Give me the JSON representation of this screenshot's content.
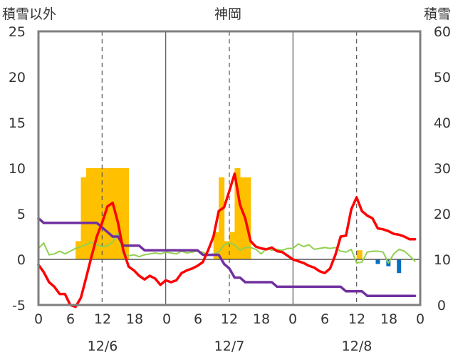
{
  "chart_data": {
    "type": "line",
    "title": "神岡",
    "left_axis": {
      "label": "積雪以外",
      "ylim": [
        -5,
        25
      ],
      "ticks": [
        "25",
        "20",
        "15",
        "10",
        "5",
        "0",
        "-5"
      ]
    },
    "right_axis": {
      "label": "積雪",
      "ylim": [
        0,
        60
      ],
      "ticks": [
        "60",
        "50",
        "40",
        "30",
        "20",
        "10",
        "0"
      ]
    },
    "x_axis": {
      "xlim": [
        0,
        72
      ],
      "hour_ticks": [
        "0",
        "6",
        "12",
        "18",
        "0",
        "6",
        "12",
        "18",
        "0",
        "6",
        "12",
        "18",
        "0"
      ],
      "dates": [
        "12/6",
        "12/7",
        "12/8"
      ]
    },
    "colors": {
      "temperature": "#ff0000",
      "snow_depth": "#7030a0",
      "green": "#92d050",
      "precip": "#ffc000",
      "change": "#0070c0"
    },
    "series": [
      {
        "key": "temperature",
        "axis": "left",
        "x": [
          0,
          1,
          2,
          3,
          4,
          5,
          6,
          7,
          8,
          9,
          10,
          11,
          12,
          13,
          14,
          15,
          16,
          17,
          18,
          19,
          20,
          21,
          22,
          23,
          24,
          25,
          26,
          27,
          28,
          29,
          30,
          31,
          32,
          33,
          34,
          35,
          36,
          37,
          38,
          39,
          40,
          41,
          42,
          43,
          44,
          45,
          46,
          47,
          48,
          49,
          50,
          51,
          52,
          53,
          54,
          55,
          56,
          57,
          58,
          59,
          60,
          61,
          62,
          63,
          64,
          65,
          66,
          67,
          68,
          69,
          70,
          71
        ],
        "y": [
          -0.6,
          -1.4,
          -2.5,
          -3,
          -3.8,
          -3.8,
          -5,
          -5.2,
          -4.2,
          -2,
          0.3,
          2.5,
          4,
          5.8,
          6.2,
          4,
          1,
          -0.8,
          -1.2,
          -1.8,
          -2.2,
          -1.8,
          -2.1,
          -2.8,
          -2.3,
          -2.5,
          -2.3,
          -1.5,
          -1.2,
          -1,
          -0.7,
          -0.3,
          1,
          2.5,
          5.3,
          5.7,
          7.5,
          9.4,
          6,
          4.5,
          2,
          1.4,
          1.2,
          1.1,
          1.3,
          0.9,
          0.8,
          0.4,
          0,
          -0.2,
          -0.4,
          -0.7,
          -0.9,
          -1.3,
          -1.5,
          -1,
          0.5,
          2.5,
          2.6,
          5.5,
          6.8,
          5.3,
          4.8,
          4.5,
          3.4,
          3.3,
          3.1,
          2.8,
          2.7,
          2.5,
          2.2,
          2.2
        ]
      },
      {
        "key": "snow_depth",
        "axis": "right",
        "x": [
          0,
          1,
          2,
          3,
          4,
          5,
          6,
          7,
          8,
          9,
          10,
          11,
          12,
          13,
          14,
          15,
          16,
          17,
          18,
          19,
          20,
          21,
          22,
          23,
          24,
          25,
          26,
          27,
          28,
          29,
          30,
          31,
          32,
          33,
          34,
          35,
          36,
          37,
          38,
          39,
          40,
          41,
          42,
          43,
          44,
          45,
          46,
          47,
          48,
          49,
          50,
          51,
          52,
          53,
          54,
          55,
          56,
          57,
          58,
          59,
          60,
          61,
          62,
          63,
          64,
          65,
          66,
          67,
          68,
          69,
          70,
          71
        ],
        "y": [
          19,
          18,
          18,
          18,
          18,
          18,
          18,
          18,
          18,
          18,
          18,
          18,
          17,
          16,
          15,
          15,
          13,
          13,
          13,
          13,
          12,
          12,
          12,
          12,
          12,
          12,
          12,
          12,
          12,
          12,
          12,
          11,
          11,
          11,
          11,
          9,
          8,
          6,
          6,
          5,
          5,
          5,
          5,
          5,
          5,
          4,
          4,
          4,
          4,
          4,
          4,
          4,
          4,
          4,
          4,
          4,
          4,
          4,
          3,
          3,
          3,
          3,
          2,
          2,
          2,
          2,
          2,
          2,
          2,
          2,
          2,
          2
        ]
      },
      {
        "key": "green",
        "axis": "left",
        "x": [
          0,
          1,
          2,
          3,
          4,
          5,
          6,
          7,
          8,
          9,
          10,
          11,
          12,
          13,
          14,
          15,
          16,
          17,
          18,
          19,
          20,
          21,
          22,
          23,
          24,
          25,
          26,
          27,
          28,
          29,
          30,
          31,
          32,
          33,
          34,
          35,
          36,
          37,
          38,
          39,
          40,
          41,
          42,
          43,
          44,
          45,
          46,
          47,
          48,
          49,
          50,
          51,
          52,
          53,
          54,
          55,
          56,
          57,
          58,
          59,
          60,
          61,
          62,
          63,
          64,
          65,
          66,
          67,
          68,
          69,
          70,
          71
        ],
        "y": [
          1.2,
          1.8,
          0.5,
          0.6,
          0.9,
          0.6,
          0.9,
          1.2,
          1.4,
          1.6,
          1.9,
          1.6,
          1.4,
          1.5,
          1.9,
          2.9,
          0.6,
          0.4,
          0.5,
          0.3,
          0.5,
          0.6,
          0.7,
          0.6,
          0.8,
          0.7,
          0.6,
          0.9,
          0.7,
          0.8,
          0.9,
          0.8,
          0.5,
          0.6,
          0.8,
          1.6,
          1.8,
          1.6,
          1.0,
          1.3,
          1.3,
          1.1,
          0.6,
          1.2,
          1.0,
          1.1,
          1.0,
          1.2,
          1.2,
          1.7,
          1.4,
          1.6,
          1.1,
          1.2,
          1.3,
          1.2,
          1.3,
          0.9,
          0.8,
          1.1,
          -0.4,
          -0.3,
          0.8,
          0.9,
          0.9,
          0.8,
          -0.4,
          0.6,
          1.1,
          0.9,
          0.4,
          -0.2
        ]
      }
    ],
    "bars": [
      {
        "key": "precip",
        "axis": "left",
        "x": [
          7,
          8,
          9,
          10,
          11,
          12,
          13,
          14,
          15,
          16,
          33,
          34,
          35,
          36,
          37,
          38,
          39,
          60
        ],
        "y": [
          2,
          9,
          10,
          10,
          10,
          10,
          10,
          10,
          10,
          10,
          3,
          9,
          2,
          3,
          10,
          9,
          9,
          1
        ]
      },
      {
        "key": "change",
        "axis": "right",
        "x": [
          64,
          66,
          68
        ],
        "y": [
          -1,
          -1.5,
          -3
        ]
      }
    ],
    "grid": "vertical"
  }
}
